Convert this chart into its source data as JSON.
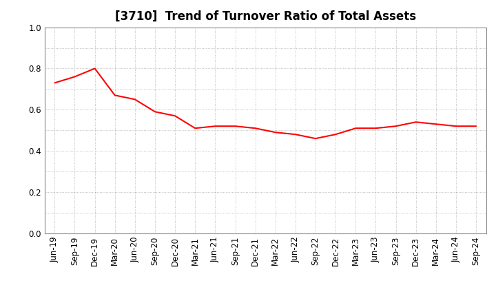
{
  "title": "[3710]  Trend of Turnover Ratio of Total Assets",
  "labels": [
    "Jun-19",
    "Sep-19",
    "Dec-19",
    "Mar-20",
    "Jun-20",
    "Sep-20",
    "Dec-20",
    "Mar-21",
    "Jun-21",
    "Sep-21",
    "Dec-21",
    "Mar-22",
    "Jun-22",
    "Sep-22",
    "Dec-22",
    "Mar-23",
    "Jun-23",
    "Sep-23",
    "Dec-23",
    "Mar-24",
    "Jun-24",
    "Sep-24"
  ],
  "values": [
    0.73,
    0.76,
    0.8,
    0.67,
    0.65,
    0.59,
    0.57,
    0.51,
    0.52,
    0.52,
    0.51,
    0.49,
    0.48,
    0.46,
    0.48,
    0.51,
    0.51,
    0.52,
    0.54,
    0.53,
    0.52,
    0.52
  ],
  "line_color": "#FF0000",
  "line_width": 1.5,
  "ylim": [
    0.0,
    1.0
  ],
  "yticks": [
    0.0,
    0.2,
    0.4,
    0.6,
    0.8,
    1.0
  ],
  "grid_color": "#999999",
  "background_color": "#ffffff",
  "title_fontsize": 12,
  "tick_fontsize": 8.5
}
